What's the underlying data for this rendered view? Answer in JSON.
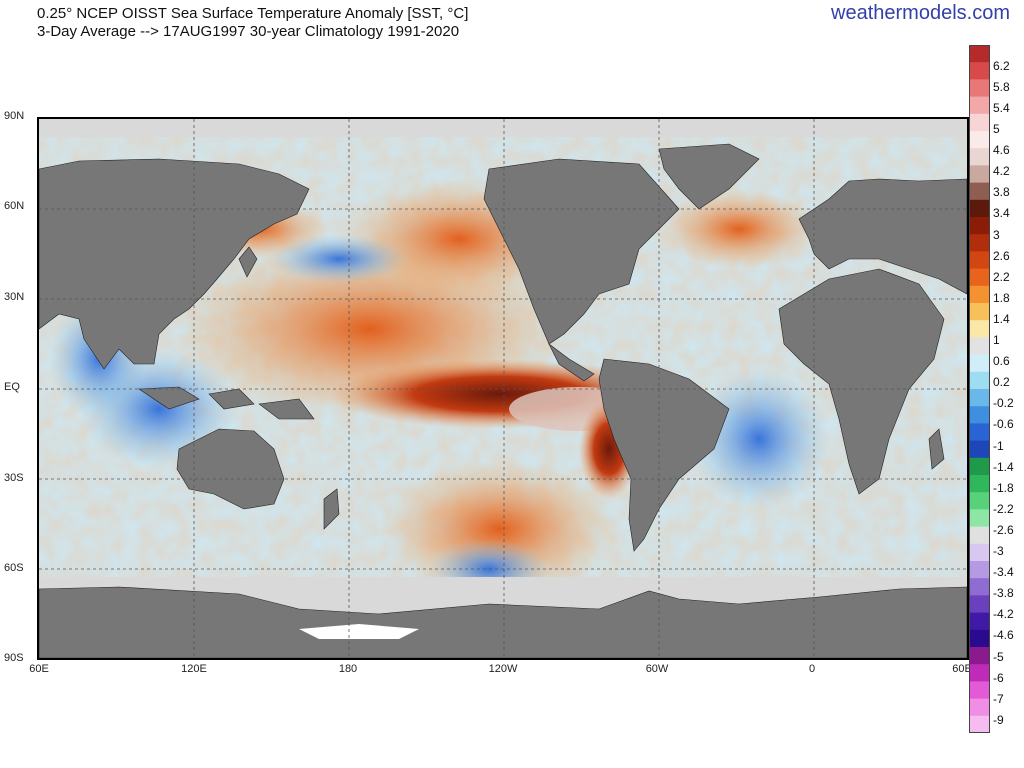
{
  "header": {
    "line1": "0.25° NCEP OISST Sea Surface Temperature Anomaly [SST, °C]",
    "line2": "3-Day Average --> 17AUG1997   30-year Climatology 1991-2020",
    "brand": "weathermodels.com"
  },
  "map": {
    "lat_labels": [
      "90N",
      "60N",
      "30N",
      "EQ",
      "30S",
      "60S",
      "90S"
    ],
    "lon_labels": [
      "60E",
      "120E",
      "180",
      "120W",
      "60W",
      "0",
      "60E"
    ]
  },
  "colorbar": {
    "ticks": [
      "6.2",
      "5.8",
      "5.4",
      "5",
      "4.6",
      "4.2",
      "3.8",
      "3.4",
      "3",
      "2.6",
      "2.2",
      "1.8",
      "1.4",
      "1",
      "0.6",
      "0.2",
      "-0.2",
      "-0.6",
      "-1",
      "-1.4",
      "-1.8",
      "-2.2",
      "-2.6",
      "-3",
      "-3.4",
      "-3.8",
      "-4.2",
      "-4.6",
      "-5",
      "-6",
      "-7",
      "-9"
    ],
    "colors": [
      "#b52b2b",
      "#d84a4a",
      "#e87878",
      "#f2a8a8",
      "#f8d4d4",
      "#fbeaea",
      "#e9d6d2",
      "#c9a8a0",
      "#8f5e52",
      "#5c1a0c",
      "#8b1d08",
      "#b02e0c",
      "#d24612",
      "#e8641c",
      "#f3922e",
      "#f8c05a",
      "#fbe7a8",
      "#e2e2e2",
      "#cfeefa",
      "#9edcf2",
      "#6ab8ea",
      "#3f8fe0",
      "#2a63d4",
      "#1d46b8",
      "#1f9a4a",
      "#2fb85a",
      "#57d27a",
      "#8de6a4",
      "#e0e0e0",
      "#d8c8f0",
      "#b49ae2",
      "#8e6cd2",
      "#6a40bc",
      "#3f1aa6",
      "#2a0a8e",
      "#8a1a8e",
      "#c02ab8",
      "#e25ad6",
      "#ef8ee4",
      "#f6bcef"
    ]
  }
}
